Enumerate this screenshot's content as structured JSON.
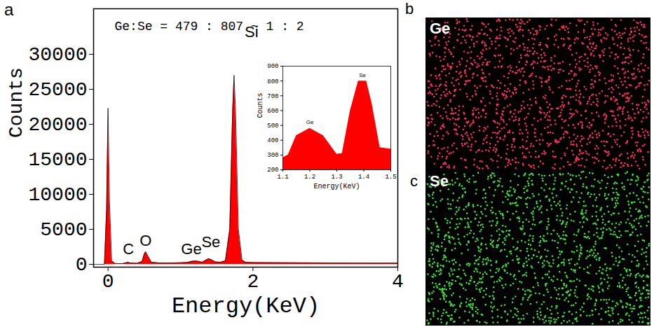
{
  "chart_data": [
    {
      "type": "area",
      "panel": "a",
      "subtitle": "Ge:Se = 479 : 807 ~ 1 : 2",
      "xlabel": "Energy(KeV)",
      "ylabel": "Counts",
      "color": "#ff0000",
      "x": [
        -0.2,
        -0.05,
        -0.02,
        0,
        0.02,
        0.05,
        0.1,
        0.2,
        0.26,
        0.28,
        0.3,
        0.4,
        0.47,
        0.5,
        0.52,
        0.55,
        0.6,
        0.7,
        0.8,
        0.9,
        1.0,
        1.1,
        1.15,
        1.2,
        1.25,
        1.3,
        1.35,
        1.39,
        1.43,
        1.48,
        1.55,
        1.62,
        1.68,
        1.72,
        1.74,
        1.76,
        1.8,
        1.85,
        1.9,
        2.0,
        2.5,
        3.0,
        3.5,
        4.0
      ],
      "values": [
        0,
        0,
        8000,
        22300,
        9000,
        500,
        100,
        100,
        250,
        300,
        200,
        150,
        400,
        1500,
        1800,
        1200,
        300,
        200,
        200,
        200,
        220,
        280,
        430,
        480,
        430,
        310,
        600,
        800,
        650,
        350,
        300,
        500,
        5000,
        22000,
        27000,
        22000,
        5000,
        600,
        300,
        250,
        220,
        200,
        180,
        170
      ],
      "xlim": [
        -0.2,
        4
      ],
      "xticks": [
        0,
        2,
        4
      ],
      "ylim": [
        -400,
        36500
      ],
      "yticks": [
        0,
        5000,
        10000,
        15000,
        20000,
        25000,
        30000
      ],
      "annotations": [
        {
          "text": "C",
          "x": 0.28,
          "y": 2200
        },
        {
          "text": "O",
          "x": 0.52,
          "y": 3400
        },
        {
          "text": "Ge",
          "x": 1.15,
          "y": 2200
        },
        {
          "text": "Se",
          "x": 1.42,
          "y": 3200
        },
        {
          "text": "Si",
          "x": 1.98,
          "y": 33200
        }
      ]
    },
    {
      "type": "area",
      "xlabel": "Energy(KeV)",
      "ylabel": "Counts",
      "color": "#ff0000",
      "x": [
        1.1,
        1.12,
        1.15,
        1.2,
        1.25,
        1.3,
        1.32,
        1.35,
        1.38,
        1.41,
        1.43,
        1.46,
        1.5
      ],
      "values": [
        280,
        300,
        430,
        480,
        430,
        305,
        310,
        600,
        800,
        800,
        650,
        350,
        340
      ],
      "xlim": [
        1.1,
        1.5
      ],
      "xticks": [
        1.1,
        1.2,
        1.3,
        1.4,
        1.5
      ],
      "ylim": [
        200,
        900
      ],
      "yticks": [
        200,
        300,
        400,
        500,
        600,
        700,
        800,
        900
      ],
      "annotations": [
        {
          "text": "Ge",
          "x": 1.2,
          "y": 520
        },
        {
          "text": "Se",
          "x": 1.395,
          "y": 840
        }
      ]
    },
    {
      "type": "map",
      "panel": "b",
      "title": "Ge",
      "color": "#ff2d5a"
    },
    {
      "type": "map",
      "panel": "c",
      "title": "Se",
      "color": "#3be03b"
    }
  ]
}
